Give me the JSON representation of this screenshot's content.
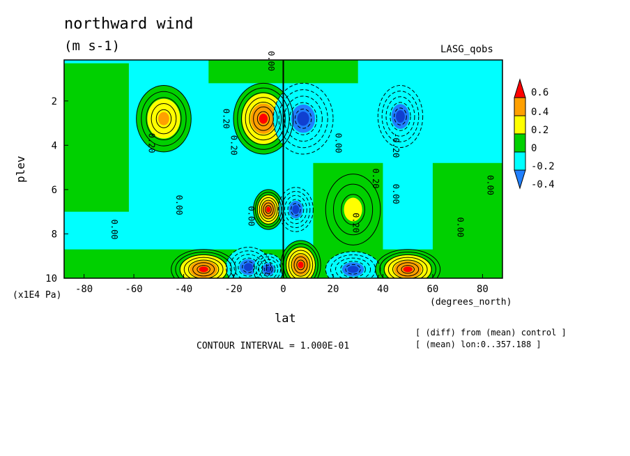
{
  "header": {
    "title": "northward wind",
    "units": "(m s-1)",
    "dataset": "LASG_qobs"
  },
  "footer": {
    "contour_interval": "CONTOUR INTERVAL = 1.000E-01",
    "note1": "[ (diff) from (mean) control ]",
    "note2": "[ (mean) lon:0..357.188 ]"
  },
  "colors": {
    "dark_red": "#ff0000",
    "orange": "#ffa000",
    "yellow": "#ffff00",
    "green": "#00d000",
    "cyan": "#00ffff",
    "blue": "#2080ff",
    "dark_blue": "#1040d0"
  },
  "chart_data": {
    "type": "heatmap",
    "title": "northward wind",
    "subtitle": "(m s-1)",
    "xlabel": "lat",
    "x_units": "(degrees_north)",
    "ylabel": "plev",
    "y_units": "(x1E4 Pa)",
    "xlim": [
      -88,
      88
    ],
    "ylim": [
      10,
      0.15
    ],
    "x_ticks": [
      -80,
      -60,
      -40,
      -20,
      0,
      20,
      40,
      60,
      80
    ],
    "y_ticks": [
      2,
      4,
      6,
      8,
      10
    ],
    "contour_interval": 0.1,
    "colorbar": {
      "levels": [
        -0.4,
        -0.2,
        0,
        0.2,
        0.4,
        0.6
      ],
      "labels": [
        "0.6",
        "0.4",
        "0.2",
        "0",
        "-0.2",
        "-0.4"
      ]
    },
    "contour_labels": [
      {
        "text": "0.00",
        "x": -6,
        "y": 0.2
      },
      {
        "text": "0.20",
        "x": -54,
        "y": 3.9
      },
      {
        "text": "0.20",
        "x": -21,
        "y": 4.0
      },
      {
        "text": "0.20",
        "x": -24,
        "y": 2.8
      },
      {
        "text": "0.20",
        "x": 28,
        "y": 7.5
      },
      {
        "text": "0.20",
        "x": 36,
        "y": 5.5
      },
      {
        "text": "0.00",
        "x": -43,
        "y": 6.7
      },
      {
        "text": "0.00",
        "x": -69,
        "y": 7.8
      },
      {
        "text": "0.00",
        "x": -14,
        "y": 7.2
      },
      {
        "text": "0.00",
        "x": 21,
        "y": 3.9
      },
      {
        "text": "0.00",
        "x": 44,
        "y": 6.2
      },
      {
        "text": "0.00",
        "x": 70,
        "y": 7.7
      },
      {
        "text": "0.00",
        "x": 82,
        "y": 5.8
      },
      {
        "text": "-0.20",
        "x": 44,
        "y": 4.0
      }
    ],
    "features": [
      {
        "kind": "high",
        "value": 0.4,
        "x": -48,
        "y": 2.8
      },
      {
        "kind": "high",
        "value": 0.6,
        "x": -8,
        "y": 2.8
      },
      {
        "kind": "low",
        "value": -0.4,
        "x": 8,
        "y": 2.8
      },
      {
        "kind": "low",
        "value": -0.4,
        "x": 47,
        "y": 2.7
      },
      {
        "kind": "high",
        "value": 0.2,
        "x": 28,
        "y": 6.9
      },
      {
        "kind": "high",
        "value": 0.6,
        "x": -6,
        "y": 6.9
      },
      {
        "kind": "low",
        "value": -0.4,
        "x": 5,
        "y": 6.9
      },
      {
        "kind": "high",
        "value": 0.6,
        "x": -32,
        "y": 9.6
      },
      {
        "kind": "low",
        "value": -0.4,
        "x": -14,
        "y": 9.5
      },
      {
        "kind": "low",
        "value": -0.4,
        "x": -6,
        "y": 9.6
      },
      {
        "kind": "high",
        "value": 0.6,
        "x": 7,
        "y": 9.4
      },
      {
        "kind": "low",
        "value": -0.4,
        "x": 28,
        "y": 9.6
      },
      {
        "kind": "high",
        "value": 0.6,
        "x": 50,
        "y": 9.6
      }
    ]
  }
}
